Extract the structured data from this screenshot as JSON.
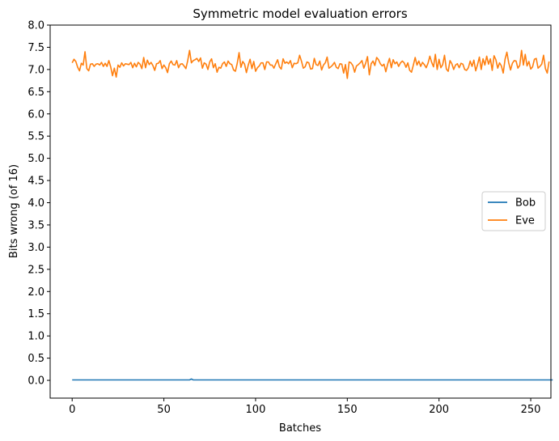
{
  "chart_data": {
    "type": "line",
    "title": "Symmetric model evaluation errors",
    "xlabel": "Batches",
    "ylabel": "Bits wrong (of 16)",
    "xlim": [
      -12,
      261
    ],
    "ylim": [
      -0.4,
      8.0
    ],
    "xticks": [
      0,
      50,
      100,
      150,
      200,
      250
    ],
    "xtick_labels": [
      "0",
      "50",
      "100",
      "150",
      "200",
      "250"
    ],
    "yticks": [
      0.0,
      0.5,
      1.0,
      1.5,
      2.0,
      2.5,
      3.0,
      3.5,
      4.0,
      4.5,
      5.0,
      5.5,
      6.0,
      6.5,
      7.0,
      7.5,
      8.0
    ],
    "ytick_labels": [
      "0.0",
      "0.5",
      "1.0",
      "1.5",
      "2.0",
      "2.5",
      "3.0",
      "3.5",
      "4.0",
      "4.5",
      "5.0",
      "5.5",
      "6.0",
      "6.5",
      "7.0",
      "7.5",
      "8.0"
    ],
    "grid": false,
    "legend_position": "center-right",
    "series": [
      {
        "name": "Bob",
        "color": "#1f77b4",
        "x_start": 0,
        "x_step": 1,
        "values": [
          0.01,
          0.01,
          0.01,
          0.01,
          0.01,
          0.01,
          0.01,
          0.01,
          0.01,
          0.01,
          0.01,
          0.01,
          0.01,
          0.01,
          0.01,
          0.01,
          0.01,
          0.01,
          0.01,
          0.01,
          0.01,
          0.01,
          0.01,
          0.01,
          0.01,
          0.01,
          0.01,
          0.01,
          0.01,
          0.01,
          0.01,
          0.01,
          0.01,
          0.01,
          0.01,
          0.01,
          0.01,
          0.01,
          0.01,
          0.01,
          0.01,
          0.01,
          0.01,
          0.01,
          0.01,
          0.01,
          0.01,
          0.01,
          0.01,
          0.01,
          0.01,
          0.01,
          0.01,
          0.01,
          0.01,
          0.01,
          0.01,
          0.01,
          0.01,
          0.01,
          0.01,
          0.01,
          0.01,
          0.01,
          0.01,
          0.03,
          0.01,
          0.01,
          0.01,
          0.01,
          0.01,
          0.01,
          0.01,
          0.01,
          0.01,
          0.01,
          0.01,
          0.01,
          0.01,
          0.01,
          0.01,
          0.01,
          0.01,
          0.01,
          0.01,
          0.01,
          0.01,
          0.01,
          0.01,
          0.01,
          0.01,
          0.01,
          0.01,
          0.01,
          0.01,
          0.01,
          0.01,
          0.01,
          0.01,
          0.01,
          0.01,
          0.01,
          0.01,
          0.01,
          0.01,
          0.01,
          0.01,
          0.01,
          0.01,
          0.01,
          0.01,
          0.01,
          0.01,
          0.01,
          0.01,
          0.01,
          0.01,
          0.01,
          0.01,
          0.01,
          0.01,
          0.01,
          0.01,
          0.01,
          0.01,
          0.01,
          0.01,
          0.01,
          0.01,
          0.01,
          0.01,
          0.01,
          0.01,
          0.01,
          0.01,
          0.01,
          0.01,
          0.01,
          0.01,
          0.01,
          0.01,
          0.01,
          0.01,
          0.01,
          0.01,
          0.01,
          0.01,
          0.01,
          0.01,
          0.01,
          0.01,
          0.01,
          0.01,
          0.01,
          0.01,
          0.01,
          0.01,
          0.01,
          0.01,
          0.01,
          0.01,
          0.01,
          0.01,
          0.01,
          0.01,
          0.01,
          0.01,
          0.01,
          0.01,
          0.01,
          0.01,
          0.01,
          0.01,
          0.01,
          0.01,
          0.01,
          0.01,
          0.01,
          0.01,
          0.01,
          0.01,
          0.01,
          0.01,
          0.01,
          0.01,
          0.01,
          0.01,
          0.01,
          0.01,
          0.01,
          0.01,
          0.01,
          0.01,
          0.01,
          0.01,
          0.01,
          0.01,
          0.01,
          0.01,
          0.01,
          0.01,
          0.01,
          0.01,
          0.01,
          0.01,
          0.01,
          0.01,
          0.01,
          0.01,
          0.01,
          0.01,
          0.01,
          0.01,
          0.01,
          0.01,
          0.01,
          0.01,
          0.01,
          0.01,
          0.01,
          0.01,
          0.01,
          0.01,
          0.01,
          0.01,
          0.01,
          0.01,
          0.01,
          0.01,
          0.01,
          0.01,
          0.01,
          0.01,
          0.01,
          0.01,
          0.01,
          0.01,
          0.01,
          0.01,
          0.01,
          0.01,
          0.01,
          0.01,
          0.01,
          0.01,
          0.01,
          0.01,
          0.01,
          0.01,
          0.01,
          0.01,
          0.01,
          0.01,
          0.01,
          0.01,
          0.01,
          0.01,
          0.01,
          0.01,
          0.01,
          0.01,
          0.01,
          0.01
        ]
      },
      {
        "name": "Eve",
        "color": "#ff7f0e",
        "x_start": 0,
        "x_step": 1,
        "values": [
          7.15,
          7.23,
          7.18,
          7.05,
          6.97,
          7.14,
          7.1,
          7.4,
          7.02,
          6.97,
          7.12,
          7.13,
          7.07,
          7.12,
          7.13,
          7.1,
          7.16,
          7.07,
          7.14,
          7.07,
          7.2,
          7.06,
          6.86,
          7.03,
          6.83,
          7.1,
          7.05,
          7.15,
          7.08,
          7.13,
          7.12,
          7.11,
          7.16,
          7.04,
          7.14,
          7.06,
          7.16,
          7.12,
          7.02,
          7.27,
          7.04,
          7.21,
          7.11,
          7.16,
          7.09,
          6.98,
          7.13,
          7.14,
          7.2,
          7.02,
          7.1,
          7.04,
          6.93,
          7.13,
          7.19,
          7.11,
          7.1,
          7.2,
          7.04,
          7.12,
          7.13,
          7.08,
          7.02,
          7.2,
          7.43,
          7.15,
          7.2,
          7.22,
          7.25,
          7.18,
          7.26,
          7.03,
          7.15,
          7.12,
          7.0,
          7.17,
          7.24,
          7.04,
          7.13,
          6.94,
          7.05,
          7.03,
          7.13,
          7.17,
          7.07,
          7.19,
          7.13,
          7.11,
          6.99,
          6.96,
          7.14,
          7.38,
          7.05,
          7.18,
          7.12,
          6.93,
          7.1,
          7.23,
          7.02,
          7.18,
          6.96,
          7.04,
          7.08,
          7.15,
          7.15,
          7.0,
          7.17,
          7.17,
          7.1,
          7.1,
          7.03,
          7.13,
          7.22,
          7.06,
          7.01,
          7.24,
          7.14,
          7.17,
          7.13,
          7.2,
          7.04,
          7.14,
          7.13,
          7.15,
          7.32,
          7.19,
          7.03,
          7.06,
          7.17,
          7.15,
          7.01,
          7.02,
          7.25,
          7.11,
          7.09,
          7.19,
          6.99,
          7.1,
          7.15,
          7.28,
          7.03,
          7.06,
          7.1,
          7.16,
          7.05,
          7.02,
          7.13,
          7.12,
          6.92,
          7.11,
          6.8,
          7.17,
          7.15,
          7.09,
          6.94,
          7.08,
          7.11,
          7.15,
          7.2,
          7.03,
          7.14,
          7.29,
          6.88,
          7.13,
          7.19,
          7.09,
          7.27,
          7.22,
          7.13,
          7.08,
          7.12,
          6.95,
          7.12,
          7.25,
          7.04,
          7.22,
          7.13,
          7.17,
          7.07,
          7.15,
          7.19,
          7.15,
          7.05,
          7.15,
          6.98,
          6.94,
          7.1,
          7.27,
          7.1,
          7.19,
          7.07,
          7.16,
          7.11,
          7.04,
          7.14,
          7.3,
          7.16,
          7.06,
          7.34,
          7.0,
          7.23,
          7.04,
          7.11,
          7.32,
          7.01,
          6.96,
          7.2,
          7.13,
          7.0,
          7.1,
          7.13,
          7.04,
          7.14,
          7.12,
          7.0,
          6.98,
          7.04,
          7.19,
          7.07,
          7.21,
          6.97,
          7.11,
          7.28,
          7.0,
          7.24,
          7.1,
          7.3,
          7.12,
          7.24,
          6.98,
          7.31,
          7.22,
          7.03,
          7.15,
          7.08,
          6.92,
          7.23,
          7.39,
          7.15,
          6.99,
          7.14,
          7.2,
          7.19,
          7.03,
          7.09,
          7.43,
          7.1,
          7.34,
          7.08,
          7.18,
          7.01,
          7.06,
          7.23,
          7.25,
          7.03,
          7.07,
          7.12,
          7.32,
          7.02,
          6.92,
          7.18
        ]
      }
    ]
  }
}
